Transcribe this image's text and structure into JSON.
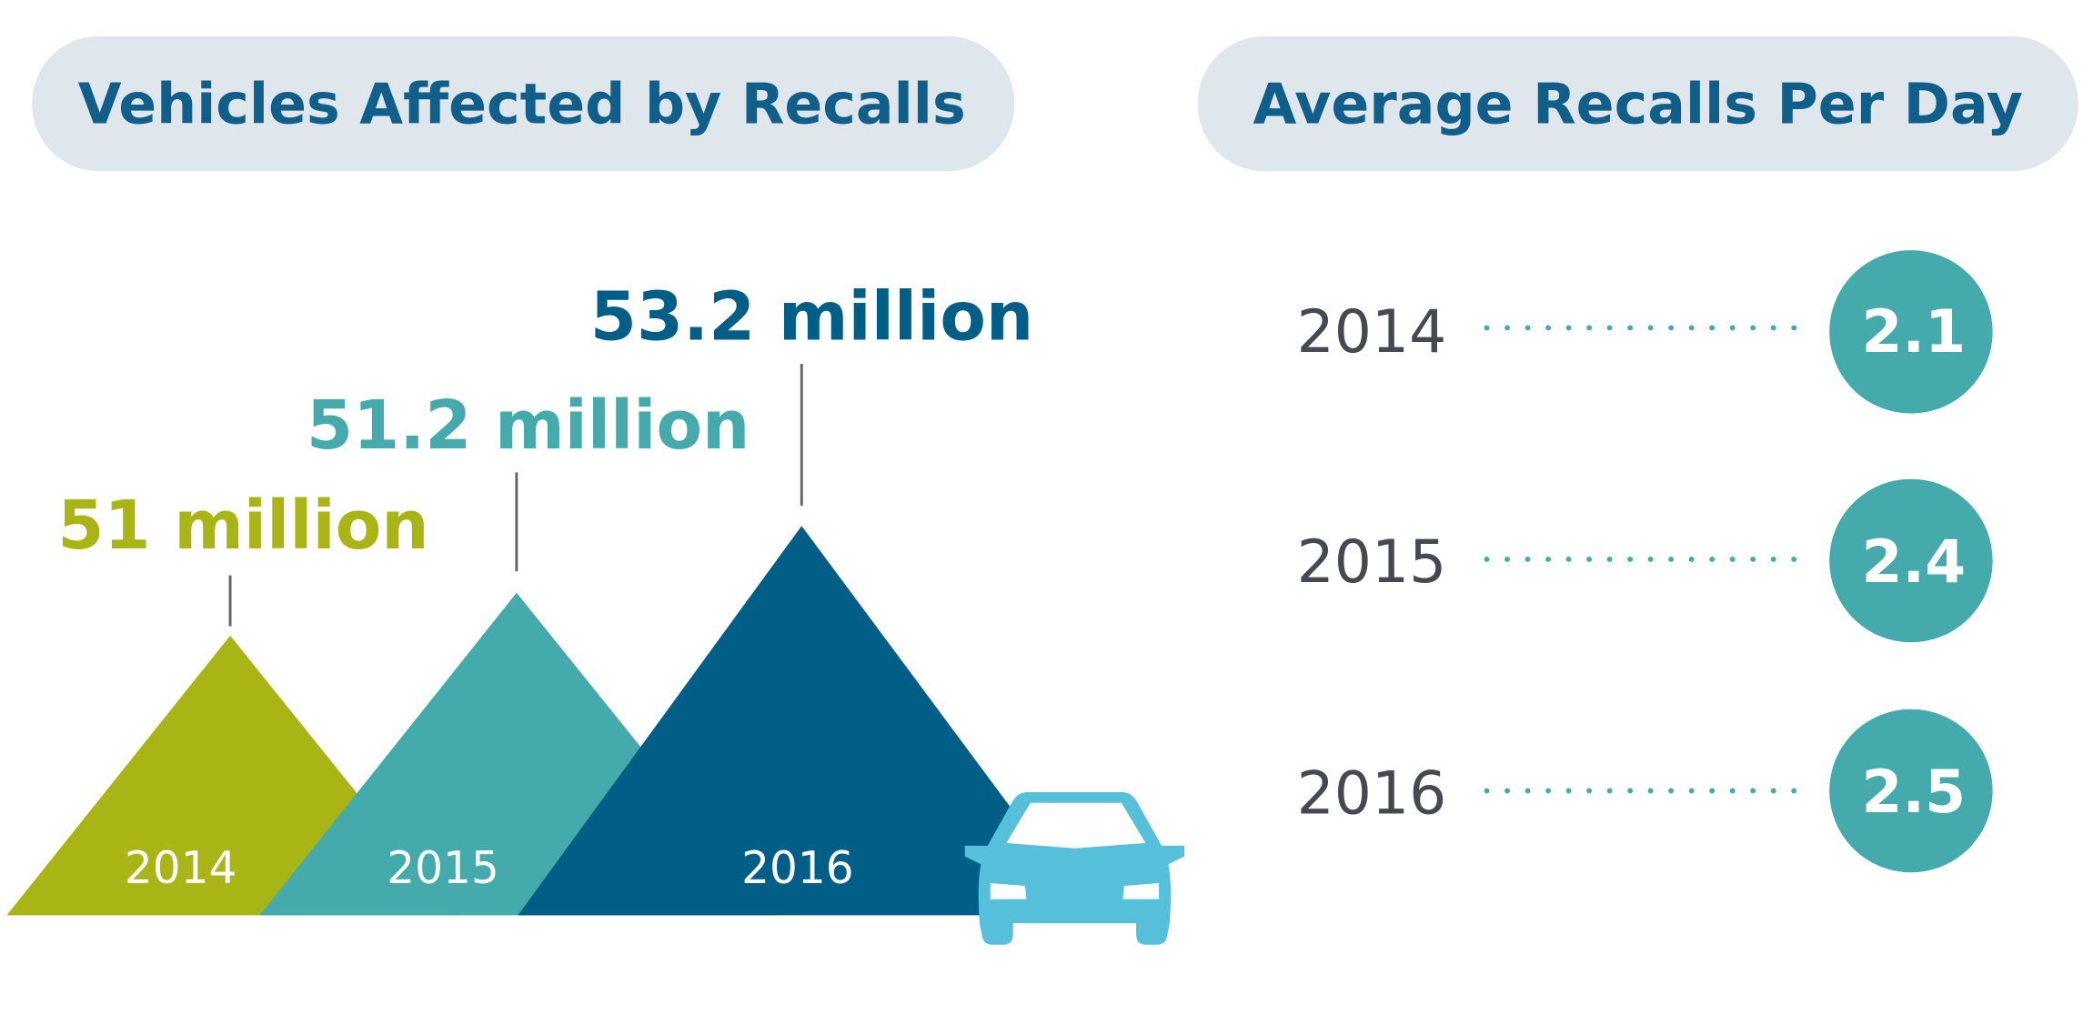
{
  "left": {
    "title": "Vehicles Affected by Recalls",
    "items": [
      {
        "year": "2014",
        "value": "51",
        "unit": "million"
      },
      {
        "year": "2015",
        "value": "51.2",
        "unit": "million"
      },
      {
        "year": "2016",
        "value": "53.2",
        "unit": "million"
      }
    ]
  },
  "right": {
    "title": "Average Recalls Per Day",
    "items": [
      {
        "year": "2014",
        "value": "2.1"
      },
      {
        "year": "2015",
        "value": "2.4"
      },
      {
        "year": "2016",
        "value": "2.5"
      }
    ]
  }
}
